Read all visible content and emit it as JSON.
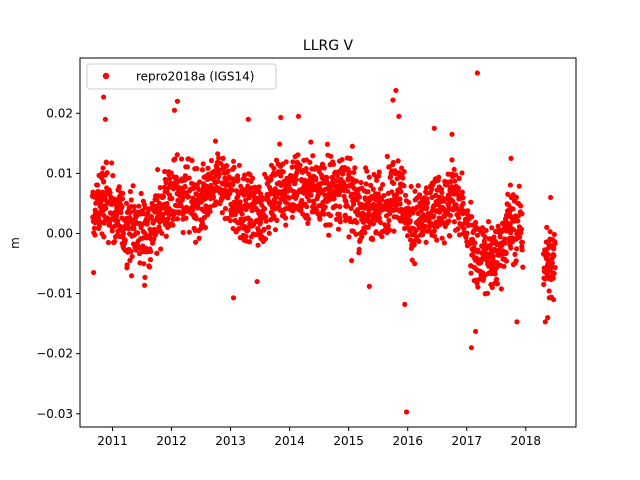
{
  "chart_data": {
    "type": "scatter",
    "title": "LLRG V",
    "xlabel": "",
    "ylabel": "m",
    "xlim": [
      2010.45,
      2018.85
    ],
    "ylim": [
      -0.0322,
      0.0292
    ],
    "xticks": [
      2011,
      2012,
      2013,
      2014,
      2015,
      2016,
      2017,
      2018
    ],
    "xtick_labels": [
      "2011",
      "2012",
      "2013",
      "2014",
      "2015",
      "2016",
      "2017",
      "2018"
    ],
    "yticks": [
      -0.03,
      -0.02,
      -0.01,
      0.0,
      0.01,
      0.02
    ],
    "ytick_labels": [
      "−0.03",
      "−0.02",
      "−0.01",
      "0.00",
      "0.01",
      "0.02"
    ],
    "grid": false,
    "legend_position": "top-left",
    "series": [
      {
        "name": "repro2018a (IGS14)",
        "color": "#ff0000",
        "marker": "circle",
        "trend_knots": {
          "x": [
            2010.65,
            2010.9,
            2011.2,
            2011.6,
            2011.9,
            2012.2,
            2012.5,
            2012.8,
            2013.0,
            2013.2,
            2013.5,
            2013.8,
            2014.2,
            2014.6,
            2014.9,
            2015.2,
            2015.6,
            2015.85,
            2016.0,
            2016.2,
            2016.5,
            2016.8,
            2017.0,
            2017.2,
            2017.5,
            2017.7,
            2017.9,
            2018.1,
            2018.35,
            2018.5
          ],
          "y": [
            0.003,
            0.006,
            0.001,
            0.0,
            0.005,
            0.007,
            0.004,
            0.009,
            0.007,
            0.004,
            0.004,
            0.007,
            0.008,
            0.007,
            0.008,
            0.004,
            0.005,
            0.008,
            0.002,
            0.002,
            0.004,
            0.006,
            0.002,
            -0.004,
            -0.004,
            0.002,
            0.001,
            -0.005,
            -0.005,
            -0.005
          ],
          "spread": 0.0042
        },
        "notable_points": [
          {
            "x": 2010.85,
            "y": 0.0227
          },
          {
            "x": 2010.88,
            "y": 0.019
          },
          {
            "x": 2010.68,
            "y": -0.0065
          },
          {
            "x": 2011.55,
            "y": -0.0073
          },
          {
            "x": 2012.05,
            "y": 0.0205
          },
          {
            "x": 2012.1,
            "y": 0.022
          },
          {
            "x": 2013.05,
            "y": -0.0107
          },
          {
            "x": 2013.45,
            "y": -0.008
          },
          {
            "x": 2013.3,
            "y": 0.019
          },
          {
            "x": 2013.85,
            "y": 0.0193
          },
          {
            "x": 2014.15,
            "y": 0.0195
          },
          {
            "x": 2015.05,
            "y": -0.0045
          },
          {
            "x": 2015.35,
            "y": -0.0088
          },
          {
            "x": 2015.75,
            "y": 0.0222
          },
          {
            "x": 2015.8,
            "y": 0.0238
          },
          {
            "x": 2015.85,
            "y": 0.0195
          },
          {
            "x": 2015.95,
            "y": -0.0118
          },
          {
            "x": 2015.98,
            "y": -0.0297
          },
          {
            "x": 2016.45,
            "y": 0.0175
          },
          {
            "x": 2016.75,
            "y": 0.0165
          },
          {
            "x": 2017.08,
            "y": -0.019
          },
          {
            "x": 2017.15,
            "y": -0.0163
          },
          {
            "x": 2017.18,
            "y": 0.0267
          },
          {
            "x": 2017.75,
            "y": 0.0125
          },
          {
            "x": 2017.85,
            "y": -0.0147
          },
          {
            "x": 2018.33,
            "y": -0.0147
          },
          {
            "x": 2018.37,
            "y": -0.014
          },
          {
            "x": 2018.42,
            "y": 0.006
          },
          {
            "x": 2018.47,
            "y": -0.011
          }
        ]
      }
    ]
  }
}
